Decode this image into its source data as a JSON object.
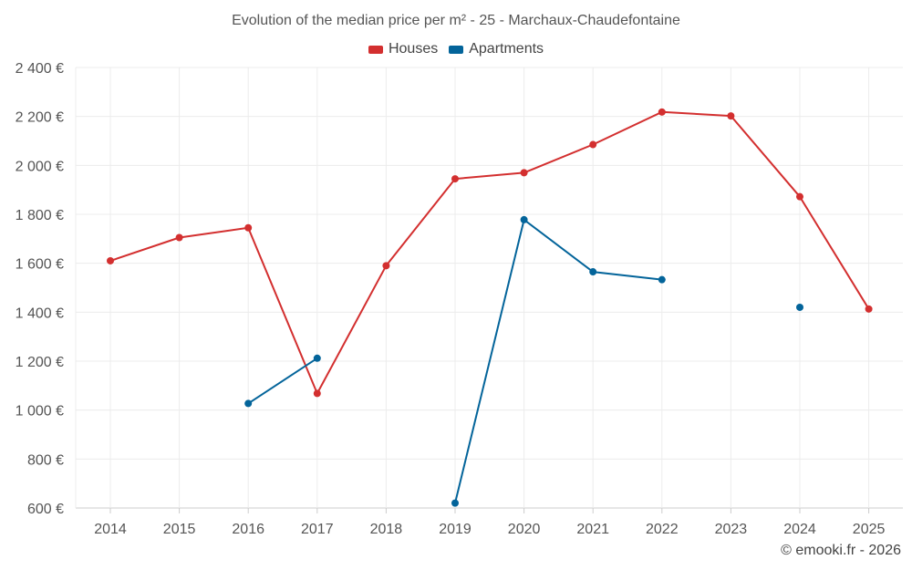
{
  "chart_data": {
    "type": "line",
    "title": "Evolution of the median price per m² - 25 - Marchaux-Chaudefontaine",
    "categories": [
      "2014",
      "2015",
      "2016",
      "2017",
      "2018",
      "2019",
      "2020",
      "2021",
      "2022",
      "2023",
      "2024",
      "2025"
    ],
    "y_tick_labels": [
      "600 €",
      "800 €",
      "1 000 €",
      "1 200 €",
      "1 400 €",
      "1 600 €",
      "1 800 €",
      "2 000 €",
      "2 200 €",
      "2 400 €"
    ],
    "y_ticks": [
      600,
      800,
      1000,
      1200,
      1400,
      1600,
      1800,
      2000,
      2200,
      2400
    ],
    "ylim": [
      600,
      2400
    ],
    "xlabel": "",
    "ylabel": "",
    "legend_position": "top-center",
    "grid": true,
    "series": [
      {
        "name": "Houses",
        "color": "#d32f2f",
        "values": [
          1610,
          1705,
          1745,
          1068,
          1590,
          1945,
          1970,
          2085,
          2218,
          2202,
          1872,
          1413
        ]
      },
      {
        "name": "Apartments",
        "color": "#03649a",
        "values": [
          null,
          null,
          1027,
          1212,
          null,
          620,
          1778,
          1565,
          1533,
          null,
          1420,
          null
        ]
      }
    ]
  },
  "credit": "© emooki.fr - 2026"
}
